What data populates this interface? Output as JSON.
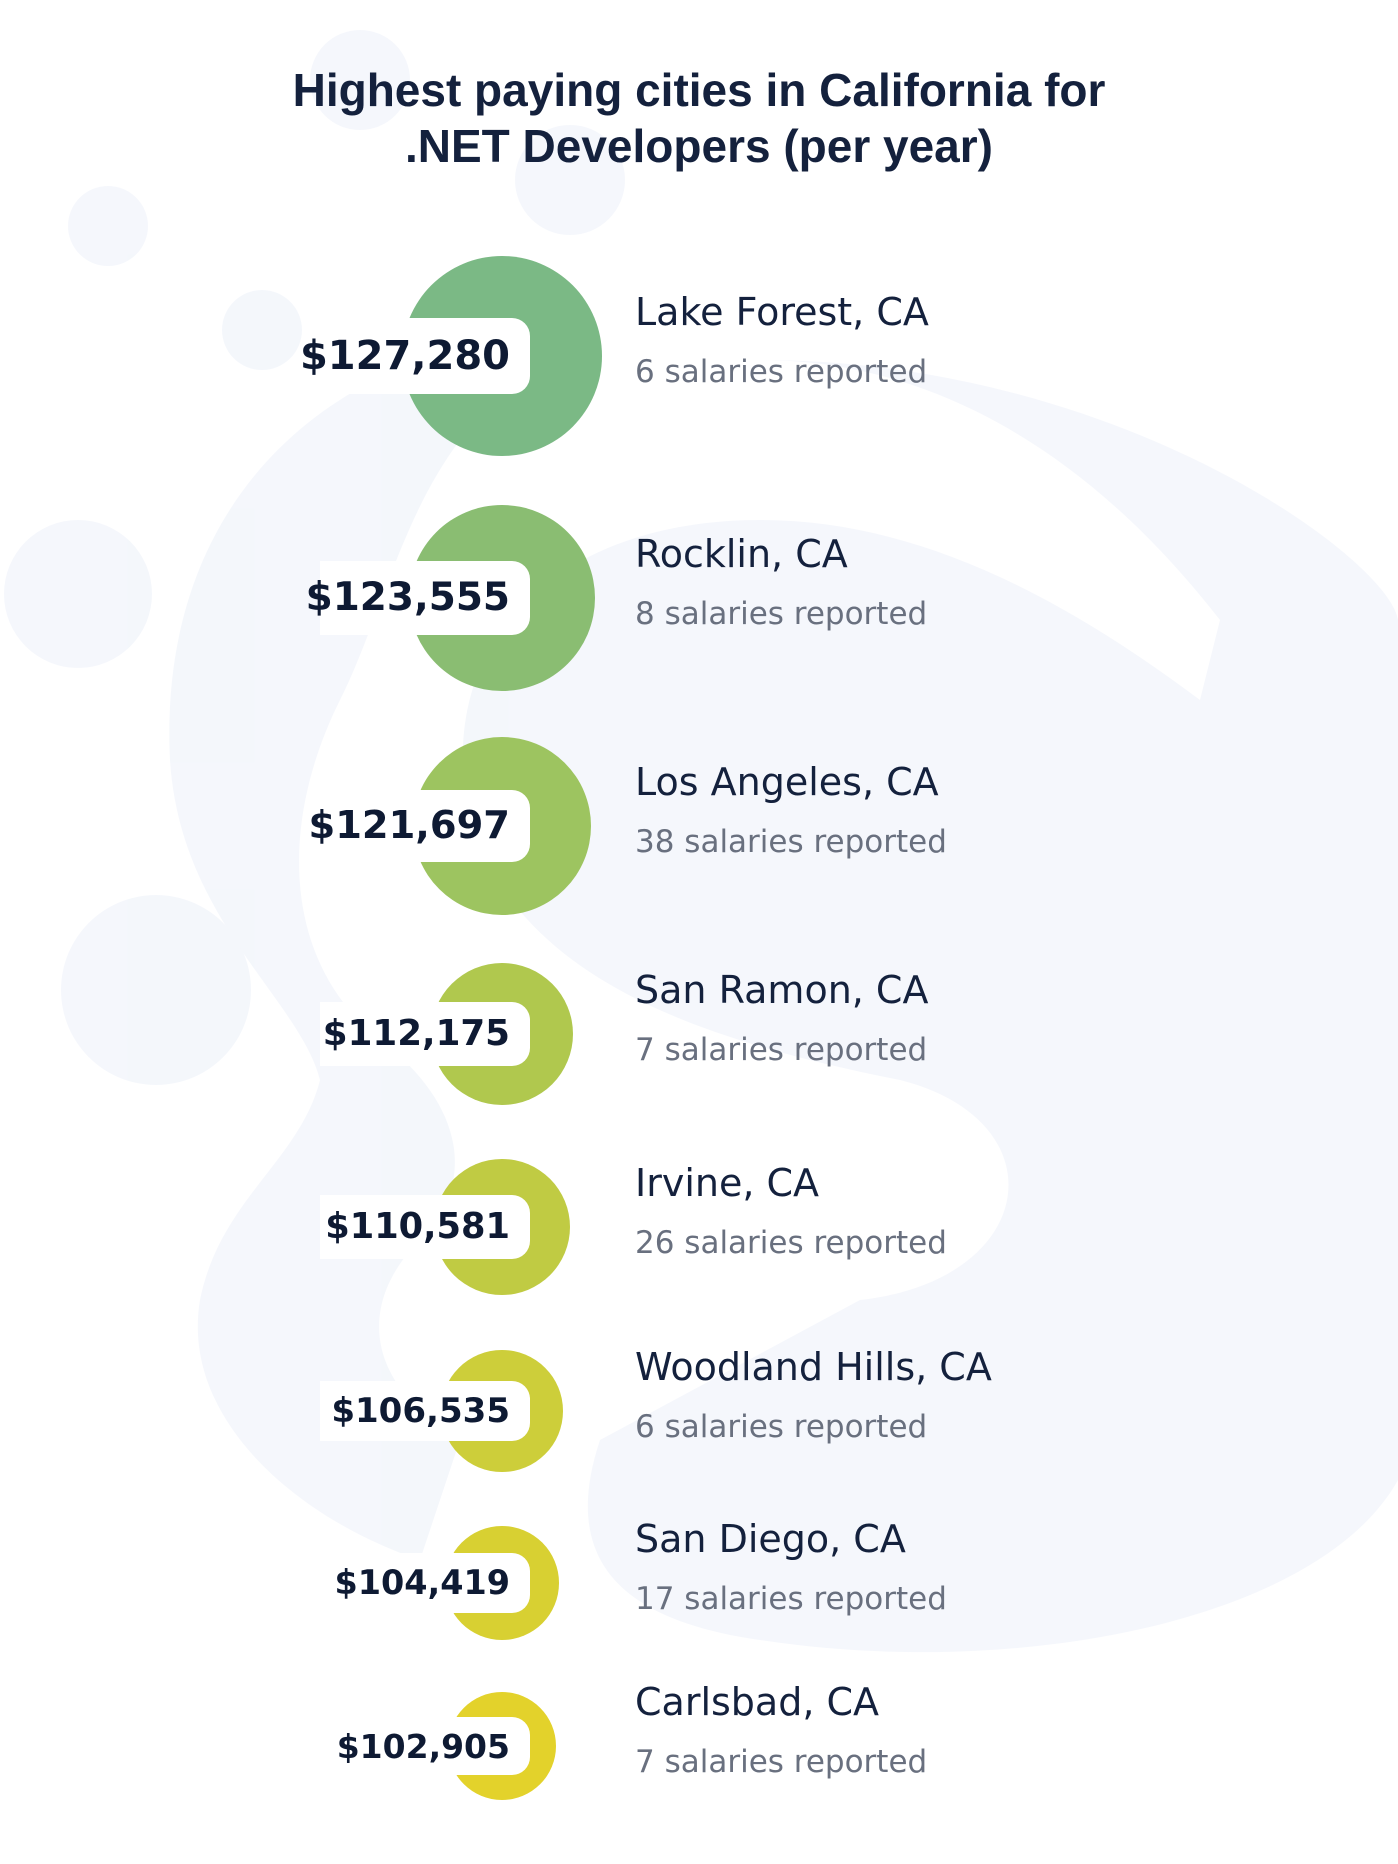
{
  "chart_data": {
    "type": "bubble-list",
    "title_lines": [
      "Highest paying cities in California for",
      ".NET Developers (per year)"
    ],
    "unit": "USD per year",
    "items": [
      {
        "city": "Lake Forest, CA",
        "salary": 127280,
        "salary_label": "$127,280",
        "reports": 6,
        "reports_label": "6 salaries reported",
        "color": "#7bb985"
      },
      {
        "city": "Rocklin, CA",
        "salary": 123555,
        "salary_label": "$123,555",
        "reports": 8,
        "reports_label": "8 salaries reported",
        "color": "#8abd72"
      },
      {
        "city": "Los Angeles, CA",
        "salary": 121697,
        "salary_label": "$121,697",
        "reports": 38,
        "reports_label": "38 salaries reported",
        "color": "#9dc460"
      },
      {
        "city": "San Ramon, CA",
        "salary": 112175,
        "salary_label": "$112,175",
        "reports": 7,
        "reports_label": "7 salaries reported",
        "color": "#b0c84e"
      },
      {
        "city": "Irvine, CA",
        "salary": 110581,
        "salary_label": "$110,581",
        "reports": 26,
        "reports_label": "26 salaries reported",
        "color": "#c0cb43"
      },
      {
        "city": "Woodland Hills, CA",
        "salary": 106535,
        "salary_label": "$106,535",
        "reports": 6,
        "reports_label": "6 salaries reported",
        "color": "#cdce3a"
      },
      {
        "city": "San Diego, CA",
        "salary": 104419,
        "salary_label": "$104,419",
        "reports": 17,
        "reports_label": "17 salaries reported",
        "color": "#d8d032"
      },
      {
        "city": "Carlsbad, CA",
        "salary": 102905,
        "salary_label": "$102,905",
        "reports": 7,
        "reports_label": "7 salaries reported",
        "color": "#e3d22b"
      }
    ]
  }
}
